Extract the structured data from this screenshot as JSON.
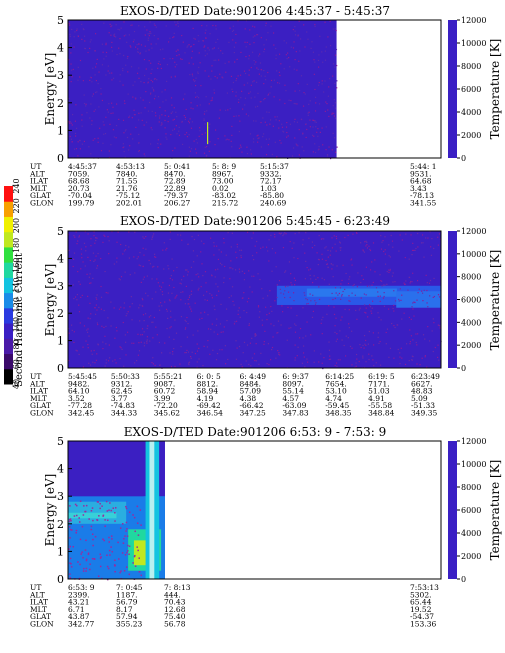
{
  "colorbar": {
    "label": "Second Harmonic Current",
    "ticks": [
      "40",
      "60",
      "80",
      "100",
      "120",
      "140",
      "160",
      "180",
      "200",
      "220",
      "240"
    ]
  },
  "chart_data": [
    {
      "type": "heatmap",
      "title": "EXOS-D/TED    Date:901206  4:45:37 - 5:45:37",
      "ylabel": "Energy [eV]",
      "ylim": [
        0,
        5
      ],
      "yticks": [
        "0",
        "1",
        "2",
        "3",
        "4",
        "5"
      ],
      "right_label": "Temperature [K]",
      "right_lim": [
        0,
        12000
      ],
      "right_ticks": [
        "0",
        "2000",
        "4000",
        "6000",
        "8000",
        "10000",
        "12000"
      ],
      "data_extent_fraction": 0.72,
      "description_of_field": "uniform low values (~120) across energies with scattered points",
      "table": {
        "row_labels": [
          "UT",
          "ALT",
          "ILAT",
          "MLT",
          "GLAT",
          "GLON"
        ],
        "columns": [
          [
            "4:45:37",
            "7059.",
            "68.68",
            "20.73",
            "-70.04",
            "199.79"
          ],
          [
            "4:53:13",
            "7840.",
            "71.55",
            "21.76",
            "-75.12",
            "202.01"
          ],
          [
            "5: 0:41",
            "8470.",
            "72.89",
            "22.89",
            "-79.37",
            "206.27"
          ],
          [
            "5: 8: 9",
            "8967.",
            "73.00",
            "0.02",
            "-83.02",
            "215.72"
          ],
          [
            "5:15:37",
            "9332.",
            "72.17",
            "1.03",
            "-85.80",
            "240.69"
          ],
          [
            "5:44: 1",
            "9531.",
            "64.68",
            "3.43",
            "-78.13",
            "341.55"
          ]
        ]
      }
    },
    {
      "type": "heatmap",
      "title": "EXOS-D/TED    Date:901206  5:45:45 - 6:23:49",
      "ylabel": "Energy [eV]",
      "ylim": [
        0,
        5
      ],
      "yticks": [
        "0",
        "1",
        "2",
        "3",
        "4",
        "5"
      ],
      "right_label": "Temperature [K]",
      "right_lim": [
        0,
        12000
      ],
      "right_ticks": [
        "0",
        "2000",
        "4000",
        "6000",
        "8000",
        "10000",
        "12000"
      ],
      "data_extent_fraction": 1.0,
      "description_of_field": "low background with elevated band between ~2.5 and ~3 eV after 6:00",
      "table": {
        "row_labels": [
          "UT",
          "ALT",
          "ILAT",
          "MLT",
          "GLAT",
          "GLON"
        ],
        "columns": [
          [
            "5:45:45",
            "9482.",
            "64.10",
            "3.52",
            "-77.28",
            "342.45"
          ],
          [
            "5:50:33",
            "9312.",
            "62.45",
            "3.77",
            "-74.83",
            "344.33"
          ],
          [
            "5:55:21",
            "9087.",
            "60.72",
            "3.99",
            "-72.20",
            "345.62"
          ],
          [
            "6: 0: 5",
            "8812.",
            "58.94",
            "4.19",
            "-69.42",
            "346.54"
          ],
          [
            "6: 4:49",
            "8484.",
            "57.09",
            "4.38",
            "-66.42",
            "347.25"
          ],
          [
            "6: 9:37",
            "8097.",
            "55.14",
            "4.57",
            "-63.09",
            "347.83"
          ],
          [
            "6:14:25",
            "7654.",
            "53.10",
            "4.74",
            "-59.45",
            "348.35"
          ],
          [
            "6:19: 5",
            "7171.",
            "51.03",
            "4.91",
            "-55.58",
            "348.84"
          ],
          [
            "6:23:49",
            "6627.",
            "48.83",
            "5.09",
            "-51.33",
            "349.35"
          ]
        ]
      }
    },
    {
      "type": "heatmap",
      "title": "EXOS-D/TED    Date:901206  6:53: 9 - 7:53: 9",
      "ylabel": "Energy [eV]",
      "ylim": [
        0,
        5
      ],
      "yticks": [
        "0",
        "1",
        "2",
        "3",
        "4",
        "5"
      ],
      "right_label": "Temperature [K]",
      "right_lim": [
        0,
        12000
      ],
      "right_ticks": [
        "0",
        "2000",
        "4000",
        "6000",
        "8000",
        "10000",
        "12000"
      ],
      "data_extent_fraction": 0.26,
      "description_of_field": "high values below ~3 eV early, strong broadband enhancement near 7:08",
      "table": {
        "row_labels": [
          "UT",
          "ALT",
          "ILAT",
          "MLT",
          "GLAT",
          "GLON"
        ],
        "columns": [
          [
            "6:53: 9",
            "2399.",
            "43.21",
            "6.71",
            "43.87",
            "342.77"
          ],
          [
            "7: 0:45",
            "1187.",
            "56.79",
            "8.17",
            "57.94",
            "355.23"
          ],
          [
            "7: 8:13",
            "444.",
            "70.43",
            "12.68",
            "75.40",
            "56.78"
          ],
          [
            "7:53:13",
            "5302.",
            "65.44",
            "19.52",
            "-54.37",
            "153.36"
          ]
        ]
      }
    }
  ]
}
